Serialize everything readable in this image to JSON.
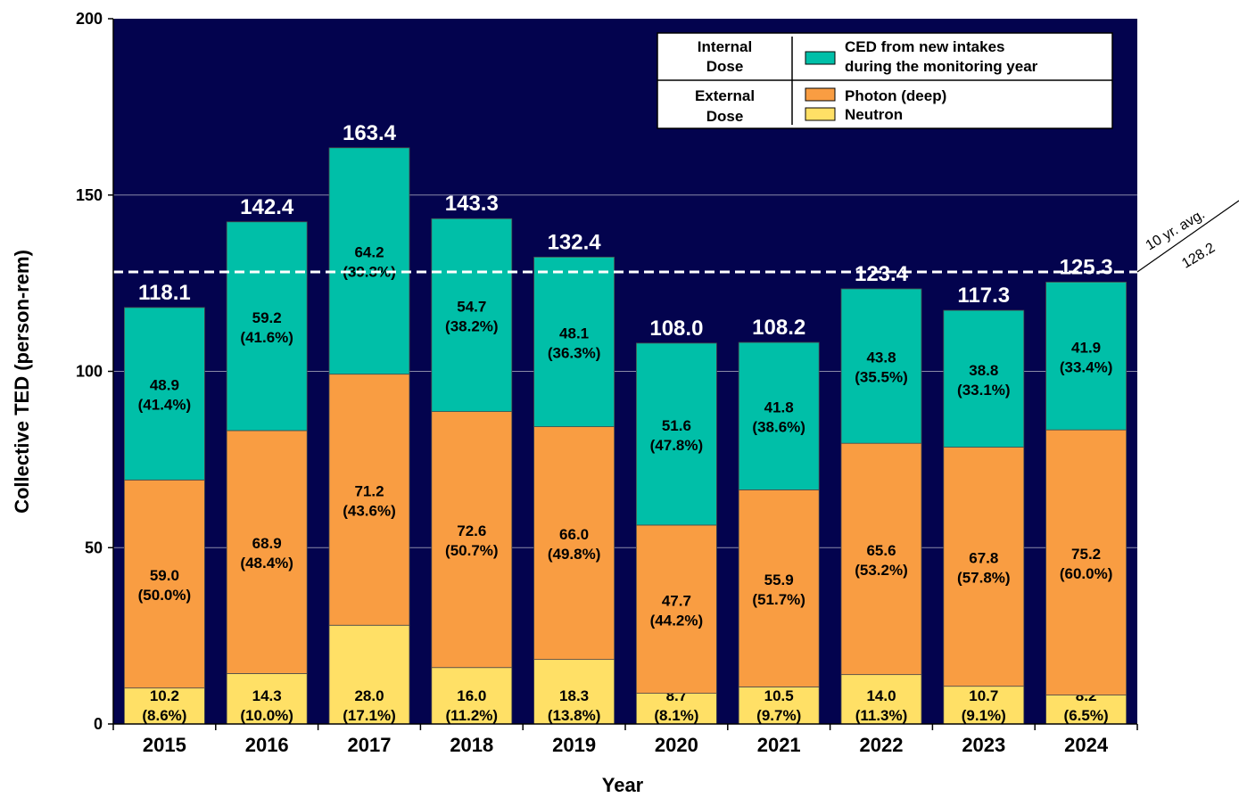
{
  "chart_data": {
    "type": "bar",
    "stacked": true,
    "categories": [
      "2015",
      "2016",
      "2017",
      "2018",
      "2019",
      "2020",
      "2021",
      "2022",
      "2023",
      "2024"
    ],
    "series": [
      {
        "name": "Neutron",
        "group": "External Dose",
        "color": "#FFE066",
        "values": [
          10.2,
          14.3,
          28.0,
          16.0,
          18.3,
          8.7,
          10.5,
          14.0,
          10.7,
          8.2
        ],
        "percent_labels": [
          "(8.6%)",
          "(10.0%)",
          "(17.1%)",
          "(11.2%)",
          "(13.8%)",
          "(8.1%)",
          "(9.7%)",
          "(11.3%)",
          "(9.1%)",
          "(6.5%)"
        ]
      },
      {
        "name": "Photon (deep)",
        "group": "External Dose",
        "color": "#F99D42",
        "values": [
          59.0,
          68.9,
          71.2,
          72.6,
          66.0,
          47.7,
          55.9,
          65.6,
          67.8,
          75.2
        ],
        "percent_labels": [
          "(50.0%)",
          "(48.4%)",
          "(43.6%)",
          "(50.7%)",
          "(49.8%)",
          "(44.2%)",
          "(51.7%)",
          "(53.2%)",
          "(57.8%)",
          "(60.0%)"
        ]
      },
      {
        "name": "CED from new intakes during the monitoring year",
        "group": "Internal Dose",
        "color": "#00BFA8",
        "values": [
          48.9,
          59.2,
          64.2,
          54.7,
          48.1,
          51.6,
          41.8,
          43.8,
          38.8,
          41.9
        ],
        "percent_labels": [
          "(41.4%)",
          "(41.6%)",
          "(39.3%)",
          "(38.2%)",
          "(36.3%)",
          "(47.8%)",
          "(38.6%)",
          "(35.5%)",
          "(33.1%)",
          "(33.4%)"
        ]
      }
    ],
    "totals": [
      118.1,
      142.4,
      163.4,
      143.3,
      132.4,
      108.0,
      108.2,
      123.4,
      117.3,
      125.3
    ],
    "xlabel": "Year",
    "ylabel": "Collective TED (person-rem)",
    "ylim": [
      0,
      200
    ],
    "yticks": [
      0,
      50,
      100,
      150,
      200
    ],
    "grid": true,
    "plot_background": "#03034E",
    "reference_line": {
      "value": 128.2,
      "label_line1": "10 yr. avg.",
      "label_line2": "128.2"
    },
    "legend": {
      "placement": "top-right",
      "groups": [
        {
          "label_line1": "Internal",
          "label_line2": "Dose",
          "items": [
            {
              "text_line1": "CED from new intakes",
              "text_line2": "during the monitoring year",
              "color": "#00BFA8"
            }
          ]
        },
        {
          "label_line1": "External",
          "label_line2": "Dose",
          "items": [
            {
              "text_line1": "Photon (deep)",
              "text_line2": "",
              "color": "#F99D42"
            },
            {
              "text_line1": "Neutron",
              "text_line2": "",
              "color": "#FFE066"
            }
          ]
        }
      ]
    }
  }
}
